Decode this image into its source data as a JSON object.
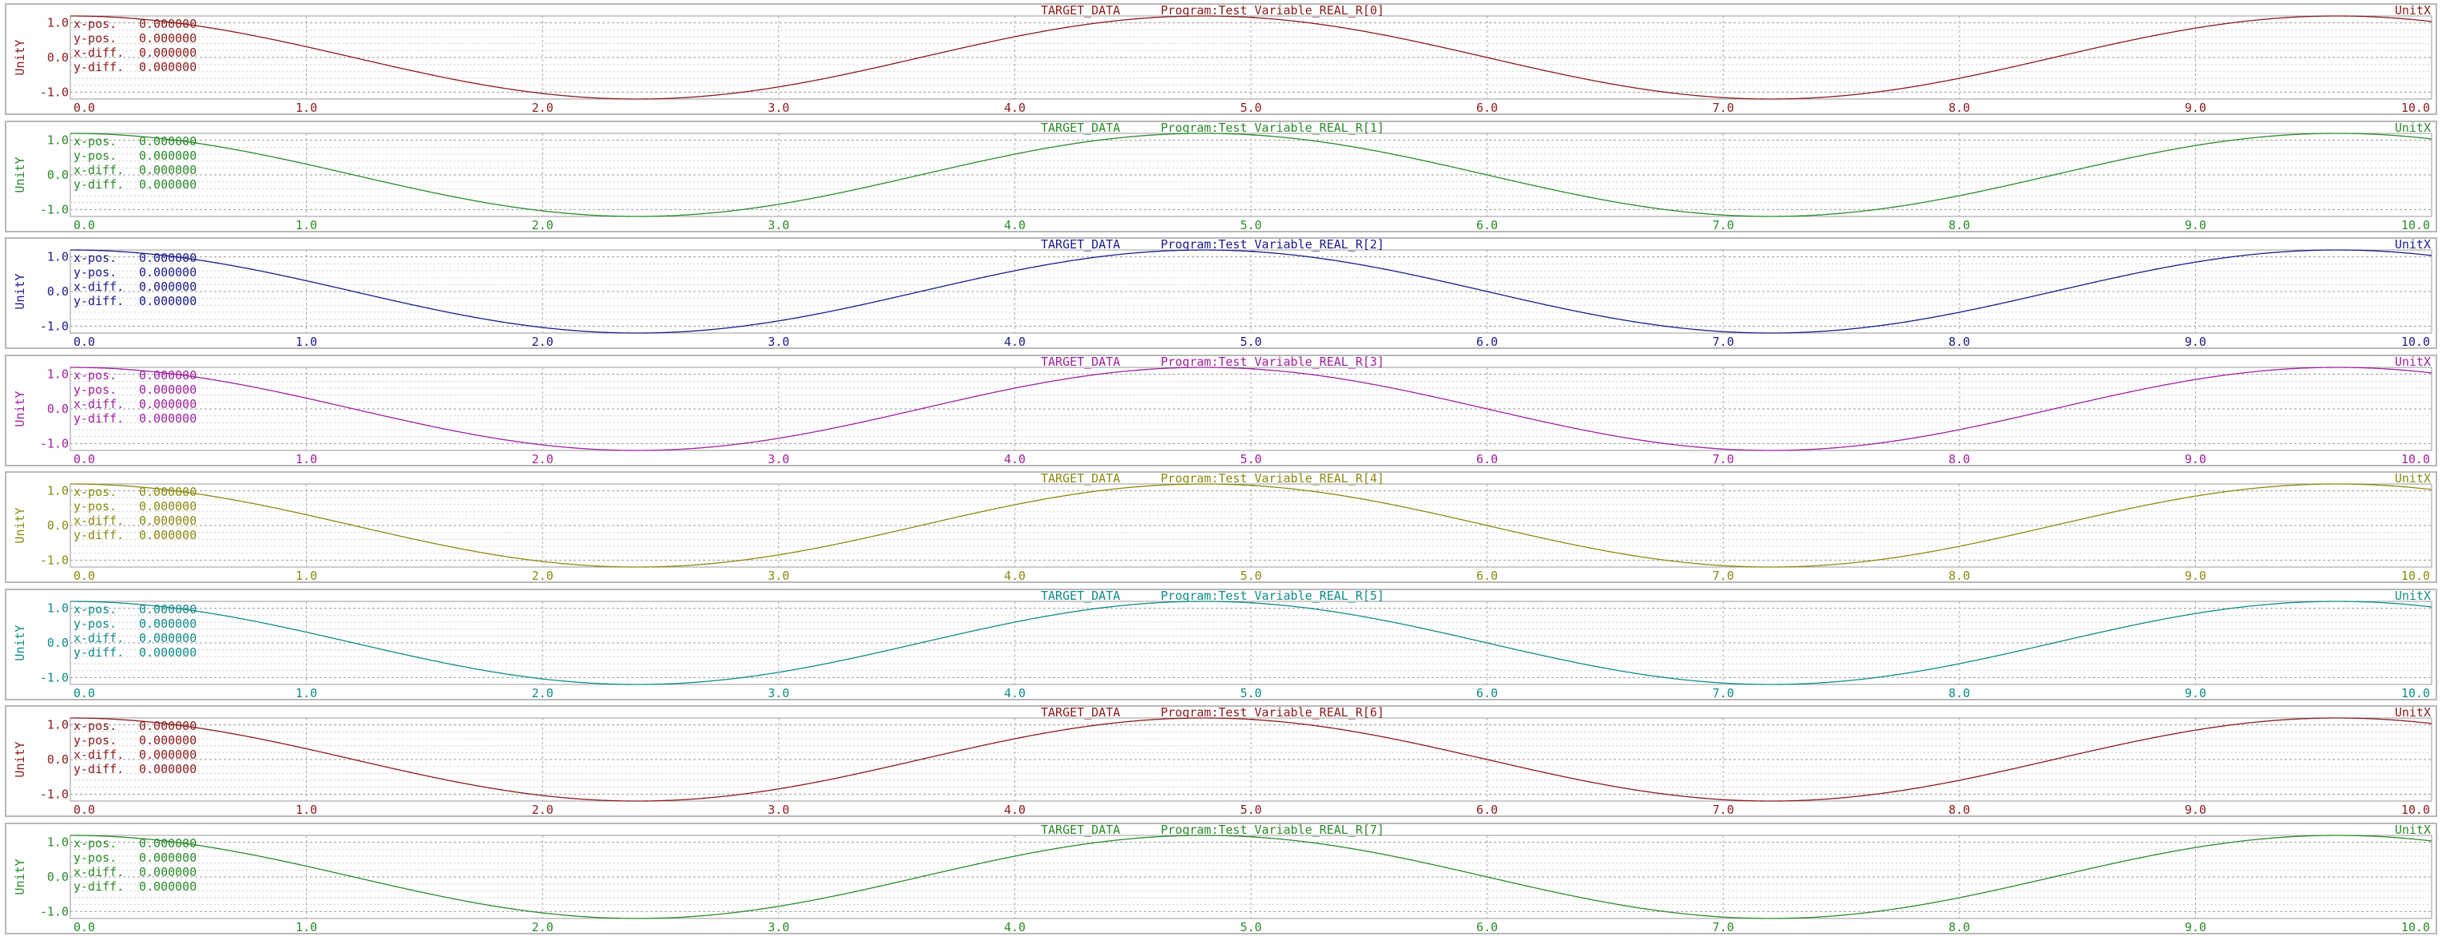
{
  "panels": [
    {
      "source": "TARGET_DATA",
      "variable": "Program:Test_Variable_REAL_R[0]",
      "color": "#8b1a1a"
    },
    {
      "source": "TARGET_DATA",
      "variable": "Program:Test_Variable_REAL_R[1]",
      "color": "#2a8a2a"
    },
    {
      "source": "TARGET_DATA",
      "variable": "Program:Test_Variable_REAL_R[2]",
      "color": "#1a1a8b"
    },
    {
      "source": "TARGET_DATA",
      "variable": "Program:Test_Variable_REAL_R[3]",
      "color": "#a020a0"
    },
    {
      "source": "TARGET_DATA",
      "variable": "Program:Test_Variable_REAL_R[4]",
      "color": "#8a8a10"
    },
    {
      "source": "TARGET_DATA",
      "variable": "Program:Test_Variable_REAL_R[5]",
      "color": "#108a8a"
    },
    {
      "source": "TARGET_DATA",
      "variable": "Program:Test_Variable_REAL_R[6]",
      "color": "#8b1a1a"
    },
    {
      "source": "TARGET_DATA",
      "variable": "Program:Test_Variable_REAL_R[7]",
      "color": "#2a8a2a"
    }
  ],
  "readouts": [
    {
      "label": "x-pos.",
      "value": "0.000000"
    },
    {
      "label": "y-pos.",
      "value": "0.000000"
    },
    {
      "label": "x-diff.",
      "value": "0.000000"
    },
    {
      "label": "y-diff.",
      "value": "0.000000"
    }
  ],
  "chart_data": {
    "type": "line",
    "xlabel": "UnitX",
    "ylabel": "UnitY",
    "xlim": [
      0,
      10
    ],
    "ylim": [
      -1.2,
      1.2
    ],
    "x_ticks": [
      "0.0",
      "1.0",
      "2.0",
      "3.0",
      "4.0",
      "5.0",
      "6.0",
      "7.0",
      "8.0",
      "9.0",
      "10.0"
    ],
    "y_ticks": [
      "1.0",
      "0.0",
      "-1.0"
    ],
    "grid": true,
    "series_function": {
      "form": "cos",
      "amplitude": 1.2,
      "period": 4.8,
      "phase": 0
    }
  }
}
